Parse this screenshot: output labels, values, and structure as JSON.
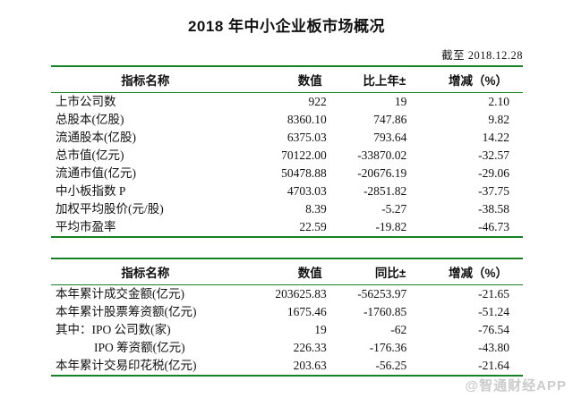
{
  "page": {
    "title": "2018 年中小企业板市场概况",
    "as_of": "截至 2018.12.28",
    "watermark": "@智通财经APP"
  },
  "colors": {
    "table_border_green": "#178223",
    "watermark_gray": "#c6c6c6"
  },
  "tables": [
    {
      "name": "市场概况表",
      "headers": [
        "指标名称",
        "数值",
        "比上年±",
        "增减（%）"
      ],
      "rows": [
        [
          "上市公司数",
          "922",
          "19",
          "2.10"
        ],
        [
          "总股本(亿股)",
          "8360.10",
          "747.86",
          "9.82"
        ],
        [
          "流通股本(亿股)",
          "6375.03",
          "793.64",
          "14.22"
        ],
        [
          "总市值(亿元)",
          "70122.00",
          "-33870.02",
          "-32.57"
        ],
        [
          "流通市值(亿元)",
          "50478.88",
          "-20676.19",
          "-29.06"
        ],
        [
          "中小板指数 P",
          "4703.03",
          "-2851.82",
          "-37.75"
        ],
        [
          "加权平均股价(元/股)",
          "8.39",
          "-5.27",
          "-38.58"
        ],
        [
          "平均市盈率",
          "22.59",
          "-19.82",
          "-46.73"
        ]
      ]
    },
    {
      "name": "累计交易表",
      "headers": [
        "指标名称",
        "数值",
        "同比±",
        "增减（%）"
      ],
      "rows": [
        [
          "本年累计成交金额(亿元)",
          "203625.83",
          "-56253.97",
          "-21.65"
        ],
        [
          "本年累计股票筹资额(亿元)",
          "1675.46",
          "-1760.85",
          "-51.24"
        ],
        [
          "其中：IPO 公司数(家)",
          "19",
          "-62",
          "-76.54"
        ],
        [
          "IPO 筹资额(亿元)",
          "226.33",
          "-176.36",
          "-43.80"
        ],
        [
          "本年累计交易印花税(亿元)",
          "203.63",
          "-56.25",
          "-21.64"
        ]
      ]
    }
  ]
}
